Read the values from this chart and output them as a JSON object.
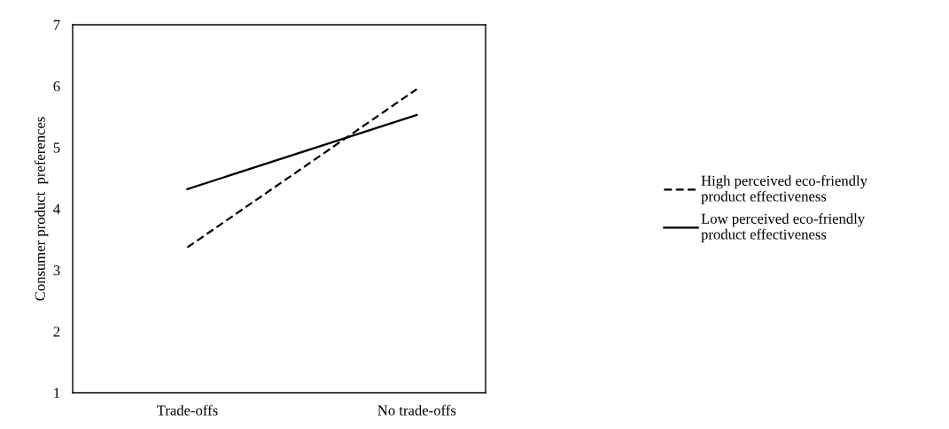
{
  "chart_data": {
    "type": "line",
    "ylabel": "Consumer product  preferences",
    "categories": [
      "Trade-offs",
      "No trade-offs"
    ],
    "series": [
      {
        "name": "High perceived eco-friendly\nproduct effectiveness",
        "color": "#000000",
        "line_style": "dashed",
        "values": [
          3.37,
          5.95
        ]
      },
      {
        "name": "Low perceived eco-friendly\nproduct effectiveness",
        "color": "#000000",
        "line_style": "solid",
        "values": [
          4.32,
          5.53
        ]
      }
    ],
    "ylim": [
      1,
      7
    ],
    "yticks": [
      1,
      2,
      3,
      4,
      5,
      6,
      7
    ],
    "grid": false,
    "legend": "right",
    "marker": "none"
  }
}
